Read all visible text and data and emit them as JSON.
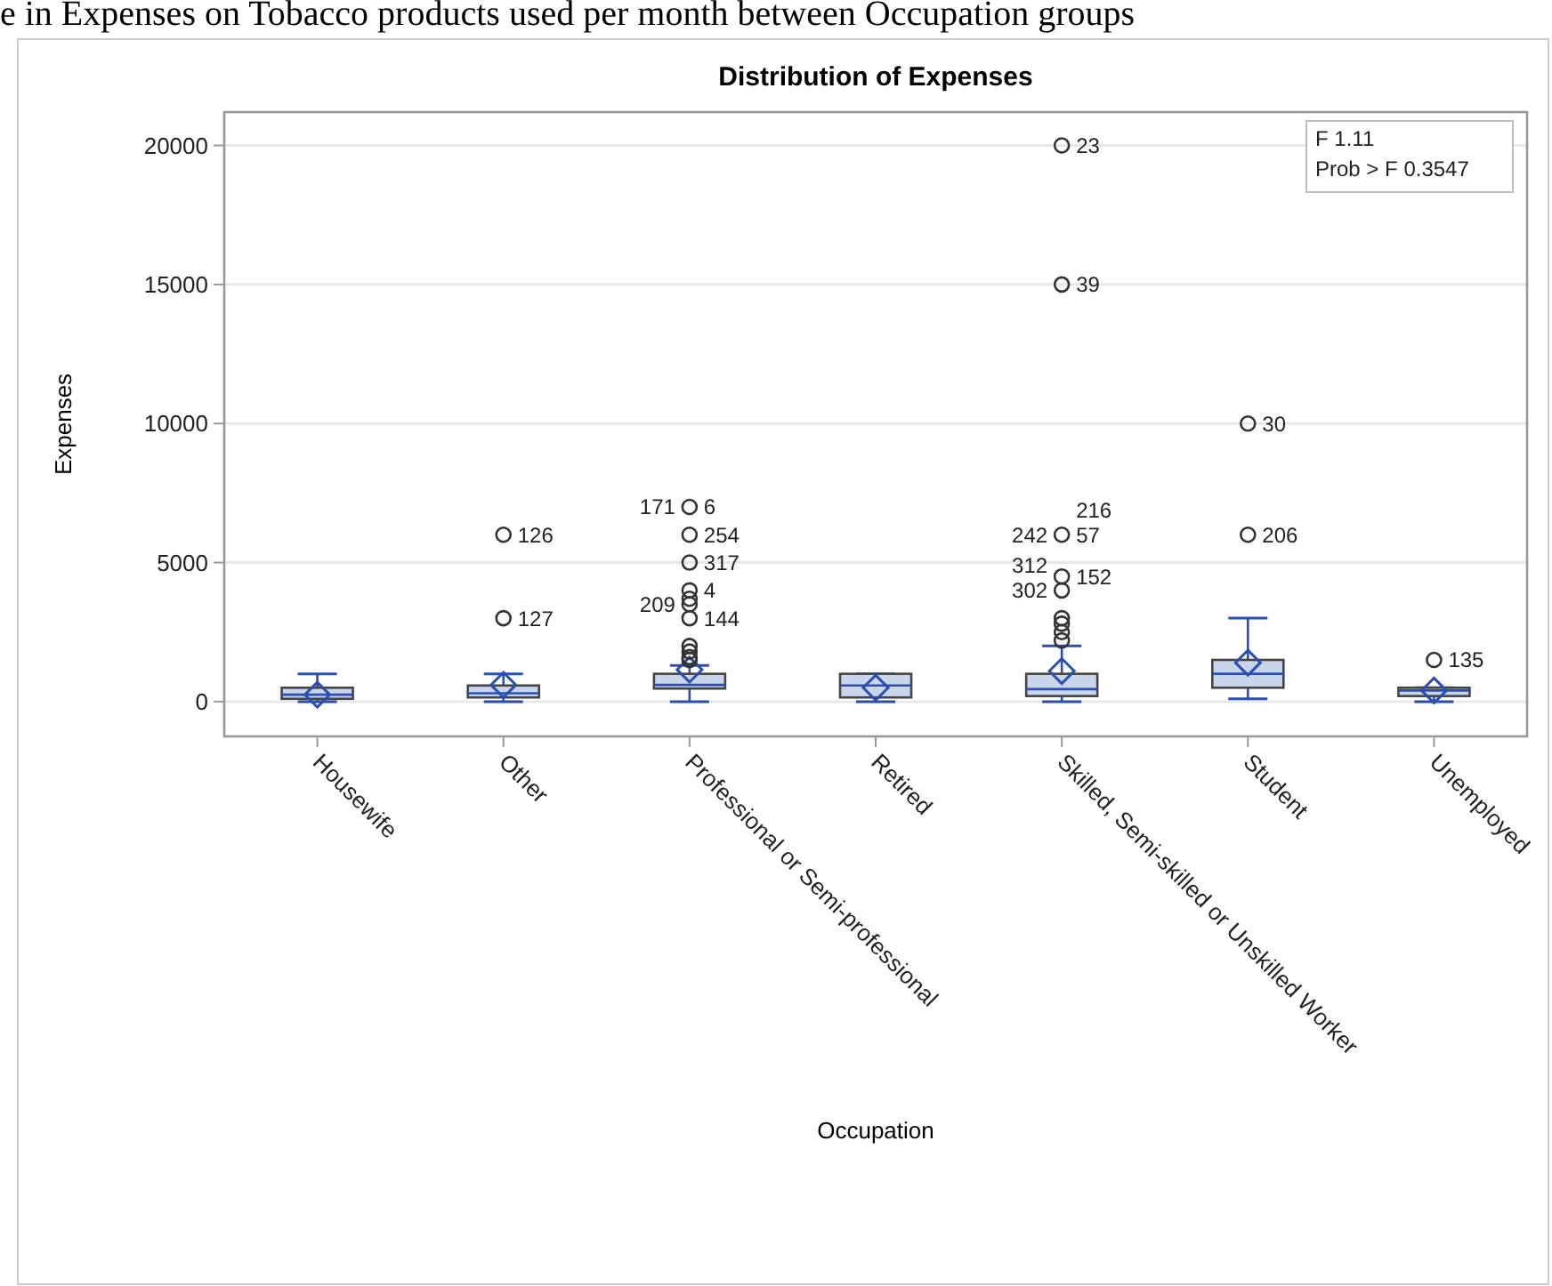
{
  "chart_data": {
    "type": "box",
    "title": "Distribution of Expenses",
    "xlabel": "Occupation",
    "ylabel": "Expenses",
    "categories": [
      "Housewife",
      "Other",
      "Professional or Semi-professional",
      "Retired",
      "Skilled, Semi-skilled or Unskilled Worker",
      "Student",
      "Unemployed"
    ],
    "color": "#c9d5ea",
    "boxes": [
      {
        "low": 0,
        "q1": 100,
        "median": 250,
        "q3": 500,
        "high": 1000,
        "mean": 250
      },
      {
        "low": 0,
        "q1": 150,
        "median": 300,
        "q3": 580,
        "high": 1000,
        "mean": 600
      },
      {
        "low": 0,
        "q1": 470,
        "median": 600,
        "q3": 1000,
        "high": 1300,
        "mean": 1150,
        "outliers": [
          3700,
          2000,
          1800,
          1600,
          1500
        ]
      },
      {
        "low": 0,
        "q1": 150,
        "median": 580,
        "q3": 1000,
        "high": 1000,
        "mean": 500
      },
      {
        "low": 0,
        "q1": 200,
        "median": 450,
        "q3": 1000,
        "high": 2000,
        "mean": 1100,
        "outliers": [
          3000,
          2800,
          2500,
          2200
        ]
      },
      {
        "low": 100,
        "q1": 500,
        "median": 1000,
        "q3": 1500,
        "high": 3000,
        "mean": 1400
      },
      {
        "low": 0,
        "q1": 200,
        "median": 400,
        "q3": 500,
        "high": 500,
        "mean": 400
      }
    ],
    "series": [
      {
        "type": "scatter",
        "color": "#333333",
        "x": [
          "Other",
          "Other",
          "Professional or Semi-professional",
          "Professional or Semi-professional",
          "Professional or Semi-professional",
          "Professional or Semi-professional",
          "Professional or Semi-professional",
          "Professional or Semi-professional",
          "Skilled, Semi-skilled or Unskilled Worker",
          "Skilled, Semi-skilled or Unskilled Worker",
          "Skilled, Semi-skilled or Unskilled Worker",
          "Skilled, Semi-skilled or Unskilled Worker",
          "Skilled, Semi-skilled or Unskilled Worker",
          "Student",
          "Student",
          "Unemployed"
        ],
        "values": [
          6000,
          3000,
          7000,
          6000,
          5000,
          4000,
          3500,
          3000,
          20000,
          15000,
          6000,
          4500,
          4000,
          10000,
          6000,
          1500
        ]
      }
    ],
    "marker": "circle",
    "ylim": [
      -1250,
      21200
    ],
    "yticks": [
      0,
      5000,
      10000,
      15000,
      20000
    ],
    "grid": "y",
    "annotations": [
      "e in Expenses on Tobacco products used per month between Occupation groups",
      "F 1.11",
      "Prob > F 0.3547",
      {
        "text": "126",
        "x": "Other",
        "y": 6000
      },
      {
        "text": "127",
        "x": "Other",
        "y": 3000
      },
      {
        "text": "6",
        "x": "Professional or Semi-professional",
        "y": 7000
      },
      {
        "text": "171",
        "x": "Professional or Semi-professional",
        "y": 7000
      },
      {
        "text": "254",
        "x": "Professional or Semi-professional",
        "y": 6000
      },
      {
        "text": "317",
        "x": "Professional or Semi-professional",
        "y": 5000
      },
      {
        "text": "4",
        "x": "Professional or Semi-professional",
        "y": 4000
      },
      {
        "text": "209",
        "x": "Professional or Semi-professional",
        "y": 3500
      },
      {
        "text": "144",
        "x": "Professional or Semi-professional",
        "y": 3000
      },
      {
        "text": "23",
        "x": "Skilled, Semi-skilled or Unskilled Worker",
        "y": 20000
      },
      {
        "text": "39",
        "x": "Skilled, Semi-skilled or Unskilled Worker",
        "y": 15000
      },
      {
        "text": "57",
        "x": "Skilled, Semi-skilled or Unskilled Worker",
        "y": 6000
      },
      {
        "text": "242",
        "x": "Skilled, Semi-skilled or Unskilled Worker",
        "y": 6000
      },
      {
        "text": "216",
        "x": "Skilled, Semi-skilled or Unskilled Worker",
        "y": 6000
      },
      {
        "text": "152",
        "x": "Skilled, Semi-skilled or Unskilled Worker",
        "y": 4500
      },
      {
        "text": "302",
        "x": "Skilled, Semi-skilled or Unskilled Worker",
        "y": 4000
      },
      {
        "text": "312",
        "x": "Skilled, Semi-skilled or Unskilled Worker",
        "y": 4000
      },
      {
        "text": "30",
        "x": "Student",
        "y": 10000
      },
      {
        "text": "206",
        "x": "Student",
        "y": 6000
      },
      {
        "text": "135",
        "x": "Unemployed",
        "y": 1500
      }
    ]
  }
}
